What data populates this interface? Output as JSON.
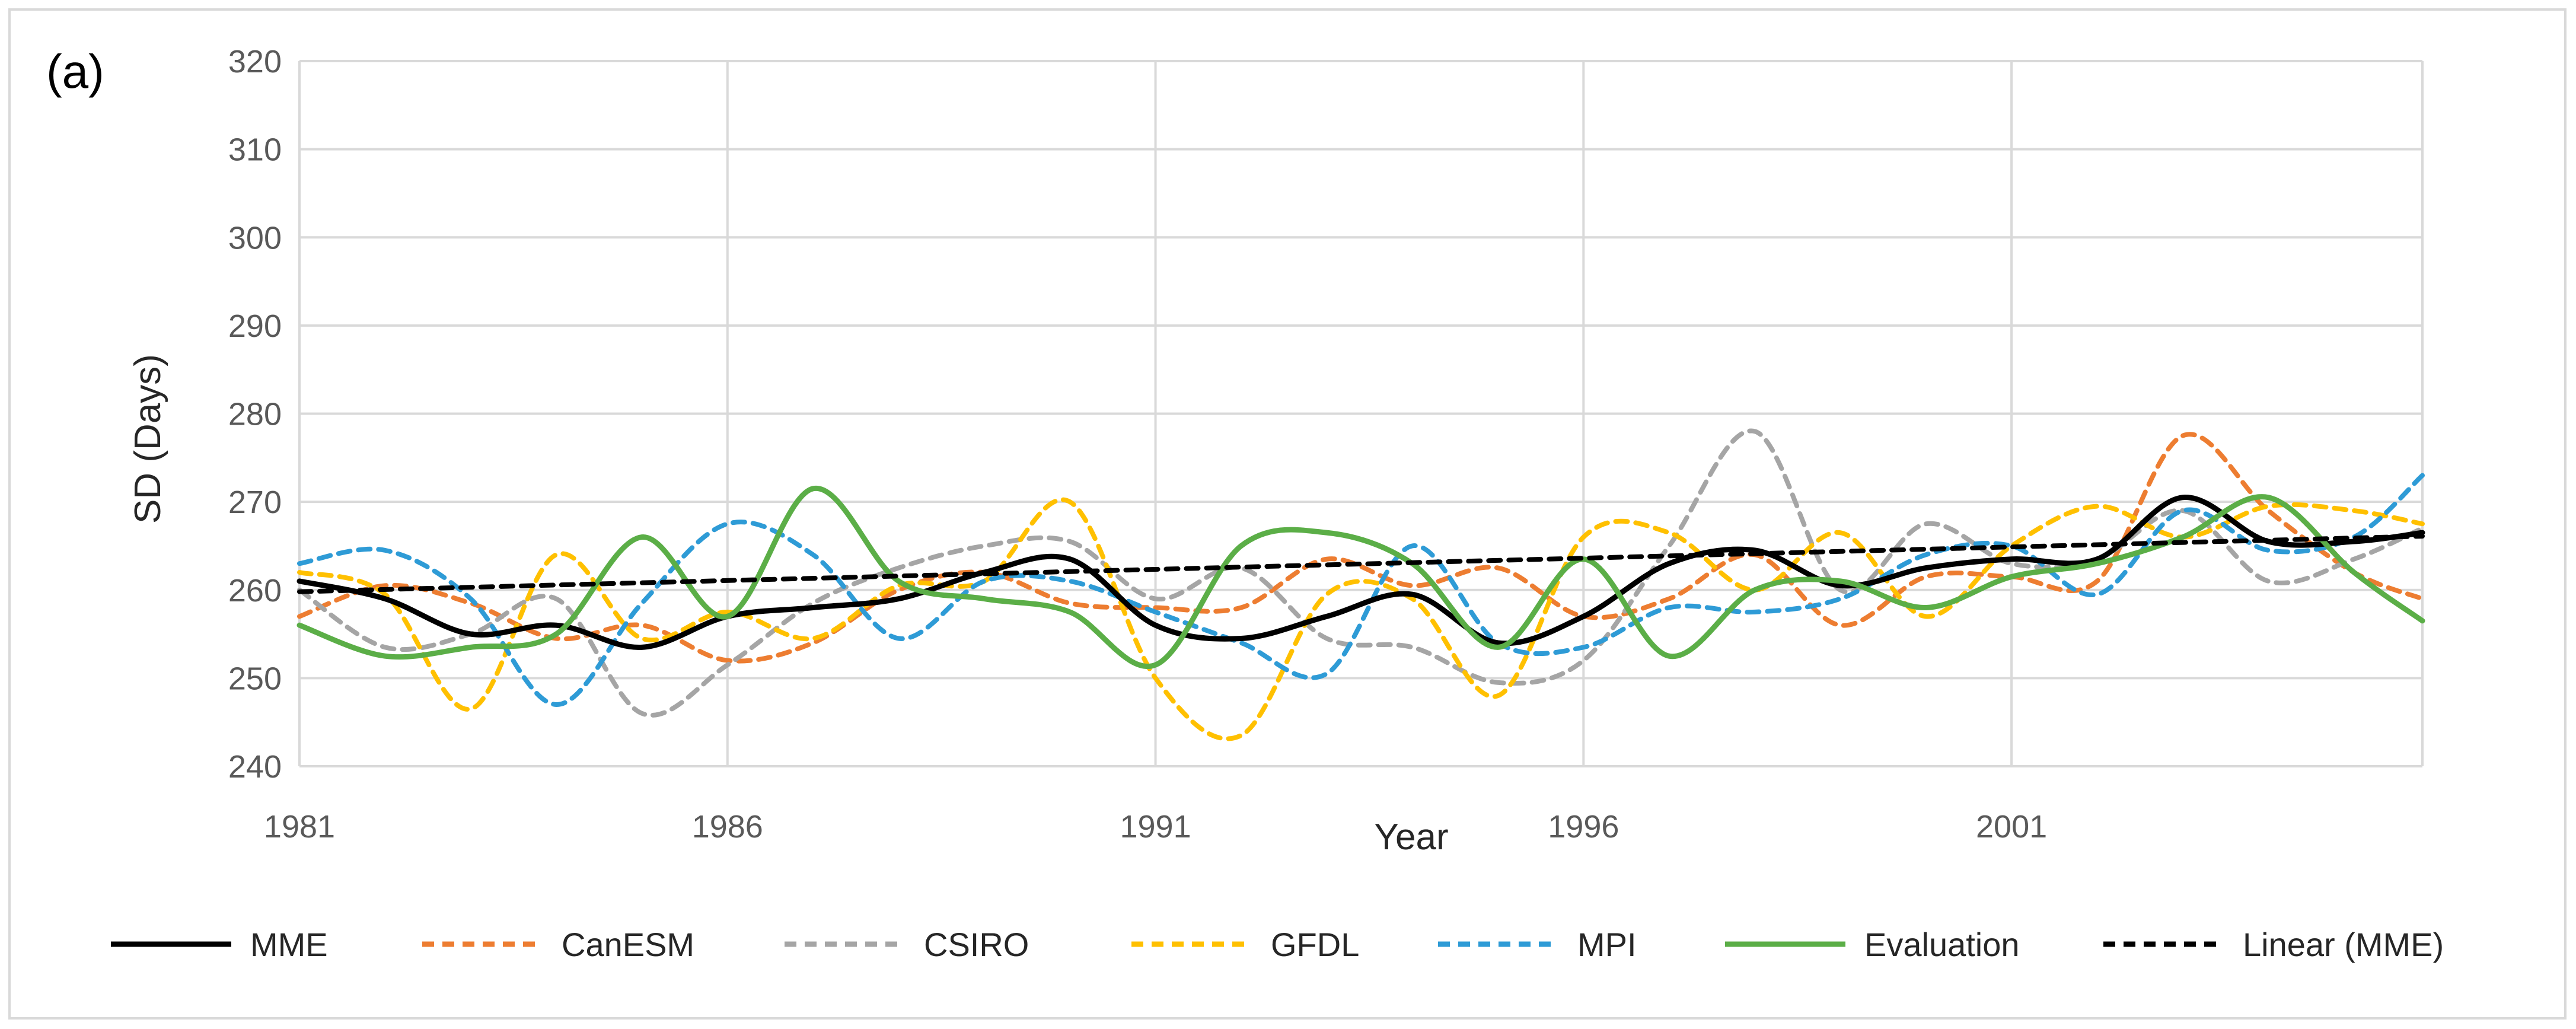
{
  "chart_data": {
    "type": "line",
    "panel_label": "(a)",
    "title": "",
    "xlabel": "Year",
    "ylabel": "SD (Days)",
    "xlim": [
      1981,
      2005.8
    ],
    "ylim": [
      240,
      320
    ],
    "yticks": [
      240,
      250,
      260,
      270,
      280,
      290,
      300,
      310,
      320
    ],
    "xticks": [
      1981,
      1986,
      1991,
      1996,
      2001
    ],
    "grid": true,
    "legend_position": "bottom",
    "series": [
      {
        "name": "MME",
        "color": "#000000",
        "dashed": false,
        "x": [
          1981,
          1982,
          1983,
          1984,
          1985,
          1986,
          1987,
          1988,
          1989,
          1990,
          1991,
          1992,
          1993,
          1994,
          1995,
          1996,
          1997,
          1998,
          1999,
          2000,
          2001,
          2002,
          2003,
          2004,
          2005,
          2005.8
        ],
        "values": [
          261,
          259,
          255,
          256,
          253.5,
          257,
          258,
          259,
          262,
          263.5,
          256,
          254.5,
          257,
          259.5,
          254,
          257,
          263,
          264.5,
          260.5,
          262.5,
          263.5,
          263.5,
          270.5,
          265.5,
          265.5,
          266.5
        ]
      },
      {
        "name": "CanESM",
        "color": "#ED7D31",
        "dashed": true,
        "x": [
          1981,
          1982,
          1983,
          1984,
          1985,
          1986,
          1987,
          1988,
          1989,
          1990,
          1991,
          1992,
          1993,
          1994,
          1995,
          1996,
          1997,
          1998,
          1999,
          2000,
          2001,
          2002,
          2003,
          2004,
          2005,
          2005.8
        ],
        "values": [
          257,
          260.5,
          258.5,
          254.5,
          256,
          252,
          254,
          260,
          262,
          258.5,
          258,
          258,
          263.5,
          260.5,
          262.5,
          257,
          259,
          264,
          256,
          261.5,
          261.5,
          261,
          277.5,
          269,
          262,
          259
        ]
      },
      {
        "name": "CSIRO",
        "color": "#A5A5A5",
        "dashed": true,
        "x": [
          1981,
          1982,
          1983,
          1984,
          1985,
          1986,
          1987,
          1988,
          1989,
          1990,
          1991,
          1992,
          1993,
          1994,
          1995,
          1996,
          1997,
          1998,
          1999,
          2000,
          2001,
          2002,
          2003,
          2004,
          2005,
          2005.8
        ],
        "values": [
          260,
          253.5,
          255,
          259,
          246,
          251.5,
          258.5,
          262.5,
          265,
          265.5,
          259,
          262.5,
          254.5,
          253.5,
          249.5,
          252,
          265,
          278,
          260,
          267.5,
          263,
          263.5,
          269,
          261,
          263.5,
          267
        ]
      },
      {
        "name": "GFDL",
        "color": "#FFC000",
        "dashed": true,
        "x": [
          1981,
          1982,
          1983,
          1984,
          1985,
          1986,
          1987,
          1988,
          1989,
          1990,
          1991,
          1992,
          1993,
          1994,
          1995,
          1996,
          1997,
          1998,
          1999,
          2000,
          2001,
          2002,
          2003,
          2004,
          2005,
          2005.8
        ],
        "values": [
          262,
          259.5,
          246.5,
          264,
          254.5,
          257.5,
          254.5,
          260.5,
          261,
          270,
          250,
          243.5,
          259.5,
          259,
          248,
          266,
          266.5,
          260,
          266.5,
          257,
          265,
          269.5,
          266,
          269.5,
          269,
          267.5
        ]
      },
      {
        "name": "MPI",
        "color": "#2E9BD6",
        "dashed": true,
        "x": [
          1981,
          1982,
          1983,
          1984,
          1985,
          1986,
          1987,
          1988,
          1989,
          1990,
          1991,
          1992,
          1993,
          1994,
          1995,
          1996,
          1997,
          1998,
          1999,
          2000,
          2001,
          2002,
          2003,
          2004,
          2005,
          2005.8
        ],
        "values": [
          263,
          264.5,
          259,
          247,
          258.5,
          267.5,
          264,
          254.5,
          261,
          261,
          257.5,
          254,
          250.5,
          265,
          254,
          253.5,
          258,
          257.5,
          259,
          264,
          265,
          259.5,
          269,
          264.5,
          266,
          273
        ]
      },
      {
        "name": "Evaluation",
        "color": "#5BAE47",
        "dashed": false,
        "x": [
          1981,
          1982,
          1983,
          1984,
          1985,
          1986,
          1987,
          1988,
          1989,
          1990,
          1991,
          1992,
          1993,
          1994,
          1995,
          1996,
          1997,
          1998,
          1999,
          2000,
          2001,
          2002,
          2003,
          2004,
          2005,
          2005.8
        ],
        "values": [
          256,
          252.5,
          253.5,
          255,
          266,
          257,
          271.5,
          261,
          259,
          257.5,
          251.5,
          265,
          266.5,
          263,
          253.5,
          263.5,
          252.5,
          260,
          261,
          258,
          261.5,
          263,
          266,
          270.5,
          262,
          256.5
        ]
      },
      {
        "name": "Linear (MME)",
        "color": "#000000",
        "dashed": true,
        "x": [
          1981,
          2005.8
        ],
        "values": [
          259.8,
          266.1
        ]
      }
    ]
  }
}
